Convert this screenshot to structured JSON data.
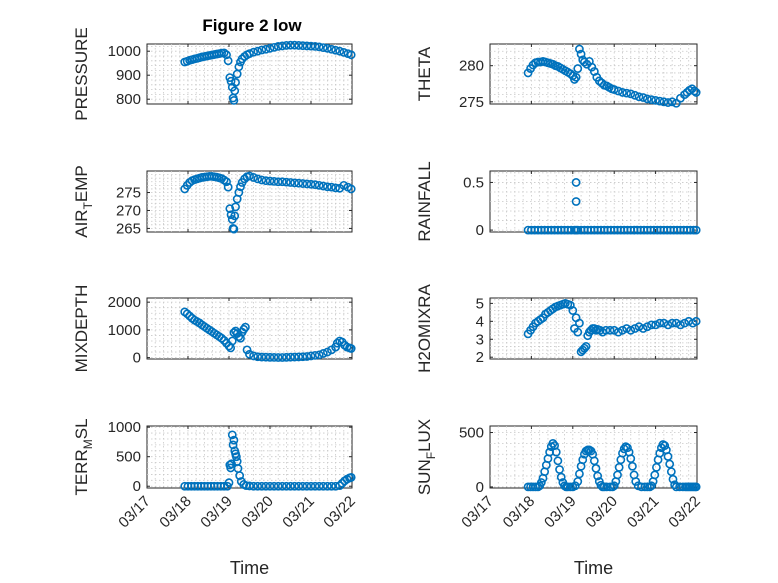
{
  "figure": {
    "title": "Figure 2 low",
    "marker_color": "#0072BD"
  },
  "chart_data": [
    {
      "type": "scatter",
      "id": "pressure",
      "ylabel": "PRESSURE",
      "xlabel": "",
      "xlim": [
        0,
        5
      ],
      "ylim": [
        780,
        1030
      ],
      "xticks": [
        0,
        1,
        2,
        3,
        4,
        5
      ],
      "xtick_labels": [
        "03/17",
        "03/18",
        "03/19",
        "03/20",
        "03/21",
        "03/22"
      ],
      "yticks": [
        800,
        900,
        1000
      ],
      "ytick_labels": [
        "800",
        "900",
        "1000"
      ],
      "x": [
        0.92,
        0.98,
        1.04,
        1.1,
        1.16,
        1.22,
        1.28,
        1.34,
        1.4,
        1.46,
        1.52,
        1.58,
        1.64,
        1.7,
        1.76,
        1.82,
        1.88,
        1.94,
        1.98,
        2.02,
        2.05,
        2.08,
        2.1,
        2.12,
        2.14,
        2.16,
        2.2,
        2.24,
        2.28,
        2.32,
        2.38,
        2.44,
        2.5,
        2.6,
        2.7,
        2.8,
        2.9,
        3.0,
        3.1,
        3.2,
        3.3,
        3.4,
        3.5,
        3.6,
        3.7,
        3.8,
        3.9,
        4.0,
        4.1,
        4.2,
        4.3,
        4.4,
        4.5,
        4.6,
        4.7,
        4.8,
        4.9,
        4.98
      ],
      "y": [
        955,
        958,
        962,
        965,
        968,
        970,
        973,
        976,
        978,
        980,
        982,
        984,
        986,
        988,
        990,
        992,
        993,
        985,
        960,
        890,
        875,
        850,
        805,
        795,
        835,
        870,
        905,
        935,
        955,
        968,
        978,
        985,
        990,
        996,
        1000,
        1005,
        1008,
        1012,
        1016,
        1020,
        1022,
        1024,
        1025,
        1025,
        1024,
        1023,
        1022,
        1021,
        1020,
        1018,
        1015,
        1012,
        1008,
        1004,
        1000,
        995,
        990,
        985
      ]
    },
    {
      "type": "scatter",
      "id": "theta",
      "ylabel": "THETA",
      "xlabel": "",
      "xlim": [
        0,
        5
      ],
      "ylim": [
        274.7,
        283
      ],
      "xticks": [
        0,
        1,
        2,
        3,
        4,
        5
      ],
      "xtick_labels": [
        "03/17",
        "03/18",
        "03/19",
        "03/20",
        "03/21",
        "03/22"
      ],
      "yticks": [
        275,
        280
      ],
      "ytick_labels": [
        "275",
        "280"
      ],
      "x": [
        0.92,
        0.98,
        1.04,
        1.1,
        1.16,
        1.22,
        1.28,
        1.34,
        1.4,
        1.46,
        1.52,
        1.58,
        1.64,
        1.7,
        1.76,
        1.82,
        1.88,
        1.94,
        2.0,
        2.04,
        2.08,
        2.12,
        2.16,
        2.2,
        2.24,
        2.28,
        2.34,
        2.4,
        2.46,
        2.52,
        2.58,
        2.64,
        2.7,
        2.76,
        2.82,
        2.88,
        2.94,
        3.0,
        3.1,
        3.2,
        3.3,
        3.4,
        3.5,
        3.6,
        3.7,
        3.8,
        3.9,
        4.0,
        4.1,
        4.2,
        4.3,
        4.4,
        4.5,
        4.6,
        4.7,
        4.76,
        4.82,
        4.88,
        4.94,
        4.98
      ],
      "y": [
        279.0,
        279.6,
        280.1,
        280.4,
        280.5,
        280.5,
        280.6,
        280.5,
        280.4,
        280.3,
        280.2,
        280.0,
        279.9,
        279.7,
        279.5,
        279.3,
        279.1,
        278.9,
        278.6,
        278.1,
        278.4,
        279.6,
        282.3,
        281.6,
        280.8,
        280.5,
        280.2,
        280.6,
        279.8,
        279.2,
        278.4,
        277.9,
        277.6,
        277.3,
        277.2,
        277.0,
        276.8,
        276.7,
        276.5,
        276.3,
        276.2,
        276.1,
        275.9,
        275.7,
        275.6,
        275.4,
        275.3,
        275.2,
        275.1,
        275.0,
        274.9,
        275.0,
        274.8,
        275.5,
        276.0,
        276.3,
        276.6,
        276.8,
        276.5,
        276.3
      ]
    },
    {
      "type": "scatter",
      "id": "air_temp",
      "ylabel": "AIR_TEMP",
      "xlabel": "",
      "xlim": [
        0,
        5
      ],
      "ylim": [
        264,
        281
      ],
      "xticks": [
        0,
        1,
        2,
        3,
        4,
        5
      ],
      "xtick_labels": [
        "03/17",
        "03/18",
        "03/19",
        "03/20",
        "03/21",
        "03/22"
      ],
      "yticks": [
        265,
        270,
        275
      ],
      "ytick_labels": [
        "265",
        "270",
        "275"
      ],
      "x": [
        0.92,
        0.98,
        1.04,
        1.1,
        1.16,
        1.22,
        1.28,
        1.34,
        1.4,
        1.46,
        1.52,
        1.58,
        1.64,
        1.7,
        1.76,
        1.82,
        1.88,
        1.94,
        1.98,
        2.02,
        2.05,
        2.08,
        2.1,
        2.12,
        2.14,
        2.16,
        2.2,
        2.24,
        2.28,
        2.32,
        2.38,
        2.44,
        2.5,
        2.6,
        2.7,
        2.8,
        2.9,
        3.0,
        3.1,
        3.2,
        3.3,
        3.4,
        3.5,
        3.6,
        3.7,
        3.8,
        3.9,
        4.0,
        4.1,
        4.2,
        4.3,
        4.4,
        4.5,
        4.6,
        4.7,
        4.8,
        4.9,
        4.98
      ],
      "y": [
        276.0,
        277.0,
        277.8,
        278.3,
        278.6,
        278.8,
        279.0,
        279.2,
        279.3,
        279.4,
        279.5,
        279.5,
        279.4,
        279.3,
        279.1,
        278.9,
        278.5,
        278.0,
        276.5,
        270.5,
        268.8,
        267.5,
        265.0,
        264.8,
        268.5,
        271.0,
        273.2,
        275.0,
        276.6,
        277.8,
        278.8,
        279.4,
        279.6,
        279.2,
        278.8,
        278.5,
        278.3,
        278.2,
        278.1,
        278.0,
        278.0,
        277.9,
        277.8,
        277.7,
        277.6,
        277.5,
        277.4,
        277.3,
        277.2,
        277.0,
        276.8,
        276.6,
        276.5,
        276.3,
        276.2,
        277.0,
        276.5,
        276.0
      ]
    },
    {
      "type": "scatter",
      "id": "rainfall",
      "ylabel": "RAINFALL",
      "xlabel": "",
      "xlim": [
        0,
        5
      ],
      "ylim": [
        -0.02,
        0.62
      ],
      "xticks": [
        0,
        1,
        2,
        3,
        4,
        5
      ],
      "xtick_labels": [
        "03/17",
        "03/18",
        "03/19",
        "03/20",
        "03/21",
        "03/22"
      ],
      "yticks": [
        0,
        0.5
      ],
      "ytick_labels": [
        "0",
        "0.5"
      ],
      "x": [
        0.92,
        1.0,
        1.08,
        1.16,
        1.24,
        1.32,
        1.4,
        1.48,
        1.56,
        1.64,
        1.72,
        1.8,
        1.88,
        1.96,
        2.04,
        2.08,
        2.12,
        2.2,
        2.28,
        2.36,
        2.44,
        2.52,
        2.6,
        2.68,
        2.76,
        2.84,
        2.92,
        3.0,
        3.08,
        3.16,
        3.24,
        3.32,
        3.4,
        3.48,
        3.56,
        3.64,
        3.72,
        3.8,
        3.88,
        3.96,
        4.04,
        4.12,
        4.2,
        4.28,
        4.36,
        4.44,
        4.52,
        4.6,
        4.68,
        4.76,
        4.84,
        4.92,
        4.98,
        2.08,
        2.08
      ],
      "y": [
        0,
        0,
        0,
        0,
        0,
        0,
        0,
        0,
        0,
        0,
        0,
        0,
        0,
        0,
        0,
        0,
        0,
        0,
        0,
        0,
        0,
        0,
        0,
        0,
        0,
        0,
        0,
        0,
        0,
        0,
        0,
        0,
        0,
        0,
        0,
        0,
        0,
        0,
        0,
        0,
        0,
        0,
        0,
        0,
        0,
        0,
        0,
        0,
        0,
        0,
        0,
        0,
        0,
        0.3,
        0.5
      ]
    },
    {
      "type": "scatter",
      "id": "mixdepth",
      "ylabel": "MIXDEPTH",
      "xlabel": "",
      "xlim": [
        0,
        5
      ],
      "ylim": [
        -50,
        2150
      ],
      "xticks": [
        0,
        1,
        2,
        3,
        4,
        5
      ],
      "xtick_labels": [
        "03/17",
        "03/18",
        "03/19",
        "03/20",
        "03/21",
        "03/22"
      ],
      "yticks": [
        0,
        1000,
        2000
      ],
      "ytick_labels": [
        "0",
        "1000",
        "2000"
      ],
      "x": [
        0.92,
        0.98,
        1.04,
        1.1,
        1.16,
        1.22,
        1.28,
        1.34,
        1.4,
        1.46,
        1.52,
        1.58,
        1.64,
        1.7,
        1.76,
        1.82,
        1.88,
        1.94,
        2.0,
        2.04,
        2.08,
        2.12,
        2.16,
        2.2,
        2.24,
        2.28,
        2.32,
        2.36,
        2.4,
        2.44,
        2.5,
        2.6,
        2.7,
        2.8,
        2.9,
        3.0,
        3.1,
        3.2,
        3.3,
        3.4,
        3.5,
        3.6,
        3.7,
        3.8,
        3.9,
        4.0,
        4.1,
        4.2,
        4.3,
        4.4,
        4.5,
        4.6,
        4.64,
        4.7,
        4.76,
        4.82,
        4.88,
        4.94,
        4.98
      ],
      "y": [
        1650,
        1580,
        1500,
        1420,
        1350,
        1300,
        1250,
        1180,
        1120,
        1060,
        1000,
        940,
        880,
        820,
        760,
        700,
        620,
        520,
        420,
        350,
        600,
        900,
        960,
        870,
        760,
        700,
        920,
        1020,
        1100,
        280,
        120,
        60,
        30,
        20,
        15,
        10,
        8,
        5,
        5,
        10,
        15,
        20,
        25,
        30,
        40,
        60,
        80,
        100,
        150,
        200,
        280,
        380,
        520,
        600,
        560,
        450,
        380,
        350,
        330
      ]
    },
    {
      "type": "scatter",
      "id": "h2omixra",
      "ylabel": "H2OMIXRA",
      "xlabel": "",
      "xlim": [
        0,
        5
      ],
      "ylim": [
        1.9,
        5.3
      ],
      "xticks": [
        0,
        1,
        2,
        3,
        4,
        5
      ],
      "xtick_labels": [
        "03/17",
        "03/18",
        "03/19",
        "03/20",
        "03/21",
        "03/22"
      ],
      "yticks": [
        2,
        3,
        4,
        5
      ],
      "ytick_labels": [
        "2",
        "3",
        "4",
        "5"
      ],
      "x": [
        0.92,
        0.98,
        1.04,
        1.1,
        1.16,
        1.22,
        1.28,
        1.34,
        1.4,
        1.46,
        1.52,
        1.58,
        1.64,
        1.7,
        1.76,
        1.82,
        1.88,
        1.94,
        2.0,
        2.04,
        2.08,
        2.12,
        2.16,
        2.2,
        2.24,
        2.28,
        2.32,
        2.36,
        2.4,
        2.44,
        2.48,
        2.52,
        2.56,
        2.6,
        2.66,
        2.72,
        2.8,
        2.9,
        3.0,
        3.1,
        3.2,
        3.3,
        3.4,
        3.5,
        3.6,
        3.7,
        3.8,
        3.9,
        4.0,
        4.1,
        4.2,
        4.3,
        4.4,
        4.5,
        4.6,
        4.7,
        4.8,
        4.9,
        4.98
      ],
      "y": [
        3.3,
        3.5,
        3.7,
        3.9,
        4.0,
        4.1,
        4.2,
        4.4,
        4.5,
        4.6,
        4.7,
        4.8,
        4.85,
        4.9,
        4.95,
        5.0,
        4.95,
        4.9,
        4.6,
        3.6,
        4.2,
        3.4,
        3.9,
        2.3,
        2.4,
        2.5,
        2.6,
        3.2,
        3.4,
        3.5,
        3.6,
        3.6,
        3.5,
        3.55,
        3.5,
        3.4,
        3.5,
        3.5,
        3.5,
        3.4,
        3.5,
        3.6,
        3.5,
        3.6,
        3.7,
        3.6,
        3.7,
        3.8,
        3.8,
        3.9,
        3.9,
        3.8,
        3.9,
        3.9,
        3.8,
        3.9,
        4.0,
        3.9,
        4.0
      ]
    },
    {
      "type": "scatter",
      "id": "terr_msl",
      "ylabel": "TERR_MSL",
      "xlabel": "Time",
      "xlim": [
        0,
        5
      ],
      "ylim": [
        -30,
        1020
      ],
      "xticks": [
        0,
        1,
        2,
        3,
        4,
        5
      ],
      "xtick_labels": [
        "03/17",
        "03/18",
        "03/19",
        "03/20",
        "03/21",
        "03/22"
      ],
      "yticks": [
        0,
        500,
        1000
      ],
      "ytick_labels": [
        "0",
        "500",
        "1000"
      ],
      "x": [
        0.92,
        1.0,
        1.08,
        1.16,
        1.24,
        1.32,
        1.4,
        1.48,
        1.56,
        1.64,
        1.72,
        1.8,
        1.88,
        1.96,
        2.0,
        2.02,
        2.04,
        2.06,
        2.08,
        2.1,
        2.12,
        2.14,
        2.16,
        2.18,
        2.2,
        2.22,
        2.26,
        2.3,
        2.36,
        2.42,
        2.5,
        2.6,
        2.7,
        2.8,
        2.9,
        3.0,
        3.1,
        3.2,
        3.3,
        3.4,
        3.5,
        3.6,
        3.7,
        3.8,
        3.9,
        4.0,
        4.1,
        4.2,
        4.3,
        4.4,
        4.5,
        4.6,
        4.7,
        4.76,
        4.82,
        4.88,
        4.94,
        4.98
      ],
      "y": [
        0,
        0,
        0,
        0,
        0,
        0,
        0,
        0,
        0,
        0,
        0,
        0,
        0,
        0,
        60,
        360,
        310,
        380,
        870,
        700,
        780,
        600,
        550,
        500,
        420,
        300,
        180,
        80,
        30,
        10,
        5,
        0,
        0,
        0,
        0,
        0,
        0,
        0,
        0,
        0,
        0,
        0,
        0,
        0,
        0,
        0,
        0,
        0,
        0,
        0,
        0,
        0,
        10,
        50,
        90,
        120,
        140,
        150
      ]
    },
    {
      "type": "scatter",
      "id": "sun_flux",
      "ylabel": "SUN_FLUX",
      "xlabel": "Time",
      "xlim": [
        0,
        5
      ],
      "ylim": [
        -10,
        560
      ],
      "xticks": [
        0,
        1,
        2,
        3,
        4,
        5
      ],
      "xtick_labels": [
        "03/17",
        "03/18",
        "03/19",
        "03/20",
        "03/21",
        "03/22"
      ],
      "yticks": [
        0,
        500
      ],
      "ytick_labels": [
        "0",
        "500"
      ],
      "x": [
        0.92,
        0.98,
        1.04,
        1.1,
        1.16,
        1.2,
        1.24,
        1.28,
        1.32,
        1.36,
        1.4,
        1.44,
        1.48,
        1.52,
        1.56,
        1.6,
        1.64,
        1.68,
        1.72,
        1.76,
        1.8,
        1.84,
        1.88,
        1.94,
        2.0,
        2.06,
        2.12,
        2.16,
        2.2,
        2.24,
        2.28,
        2.32,
        2.36,
        2.4,
        2.44,
        2.48,
        2.52,
        2.56,
        2.6,
        2.64,
        2.68,
        2.72,
        2.76,
        2.82,
        2.9,
        2.96,
        3.0,
        3.04,
        3.08,
        3.12,
        3.16,
        3.2,
        3.24,
        3.28,
        3.32,
        3.36,
        3.4,
        3.44,
        3.48,
        3.52,
        3.58,
        3.66,
        3.74,
        3.8,
        3.86,
        3.9,
        3.94,
        3.98,
        4.02,
        4.06,
        4.1,
        4.14,
        4.18,
        4.22,
        4.26,
        4.3,
        4.34,
        4.38,
        4.42,
        4.46,
        4.5,
        4.58,
        4.66,
        4.72,
        4.76,
        4.8,
        4.84,
        4.88,
        4.92,
        4.96,
        4.98
      ],
      "y": [
        0,
        0,
        0,
        0,
        0,
        10,
        40,
        80,
        140,
        200,
        260,
        320,
        370,
        400,
        380,
        320,
        240,
        160,
        90,
        40,
        10,
        0,
        0,
        0,
        0,
        10,
        50,
        120,
        190,
        250,
        300,
        330,
        340,
        340,
        330,
        300,
        240,
        170,
        100,
        50,
        15,
        0,
        0,
        0,
        0,
        0,
        10,
        50,
        110,
        180,
        250,
        310,
        350,
        370,
        360,
        320,
        260,
        190,
        110,
        50,
        10,
        0,
        0,
        0,
        0,
        10,
        50,
        110,
        180,
        250,
        310,
        360,
        390,
        380,
        340,
        280,
        210,
        140,
        70,
        20,
        0,
        0,
        0,
        0,
        0,
        0,
        0,
        0,
        0,
        0,
        0
      ]
    }
  ]
}
